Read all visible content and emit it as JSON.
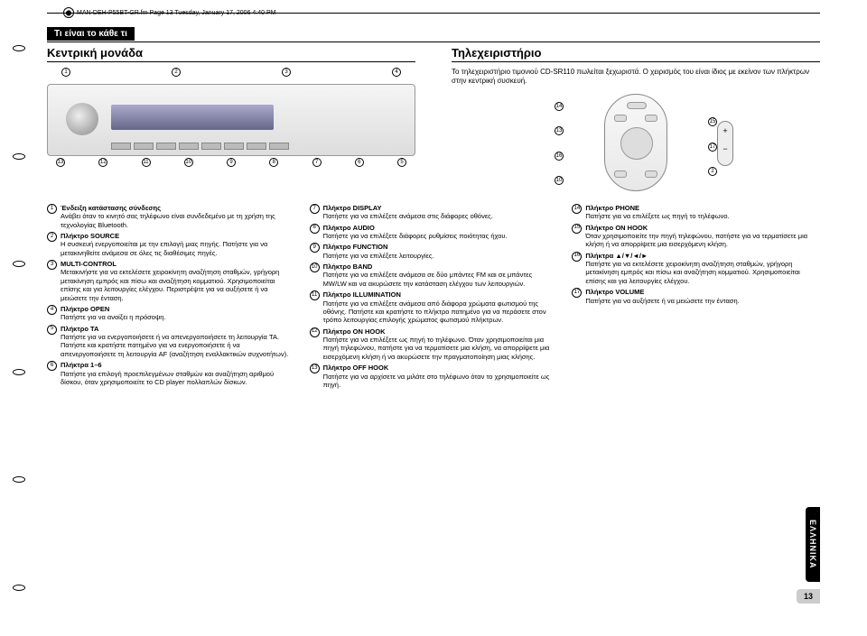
{
  "meta": {
    "filename": "MAN-DEH-P55BT-GR.fm  Page 13  Tuesday, January 17, 2006  4:40 PM"
  },
  "section_bar": "Τι είναι το κάθε τι",
  "left": {
    "title": "Κεντρική μονάδα",
    "top_callouts": [
      "1",
      "2",
      "3",
      "4"
    ],
    "bot_callouts": [
      "13",
      "12",
      "11",
      "10",
      "9",
      "8",
      "7",
      "6",
      "5"
    ]
  },
  "right": {
    "title": "Τηλεχειριστήριο",
    "desc": "Το τηλεχειριστήριο τιμονιού CD-SR110 πωλείται ξεχωριστά. Ο χειρισμός του είναι ίδιος με εκείνον των πλήκτρων στην κεντρική συσκευή.",
    "callouts_left": [
      "14",
      "13",
      "16",
      "10"
    ],
    "callouts_right": [
      "15",
      "17",
      "2"
    ]
  },
  "col1": [
    {
      "n": "1",
      "t": "Ένδειξη κατάστασης σύνδεσης",
      "d": "Ανάβει όταν το κινητό σας τηλέφωνο είναι συνδεδεμένο με τη χρήση της τεχνολογίας Bluetooth."
    },
    {
      "n": "2",
      "t": "Πλήκτρο SOURCE",
      "d": "Η συσκευή ενεργοποιείται με την επιλογή μιας πηγής. Πατήστε για να μετακινηθείτε ανάμεσα σε όλες τις διαθέσιμες πηγές."
    },
    {
      "n": "3",
      "t": "MULTI-CONTROL",
      "d": "Μετακινήστε για να εκτελέσετε χειροκίνητη αναζήτηση σταθμών, γρήγορη μετακίνηση εμπρός και πίσω και αναζήτηση κομματιού. Χρησιμοποιείται επίσης και για λειτουργίες ελέγχου. Περιστρέψτε για να αυξήσετε ή να μειώσετε την ένταση."
    },
    {
      "n": "4",
      "t": "Πλήκτρο OPEN",
      "d": "Πατήστε για να ανοίξει η πρόσοψη."
    },
    {
      "n": "5",
      "t": "Πλήκτρο TA",
      "d": "Πατήστε για να ενεργοποιήσετε ή να απενεργοποιήσετε τη λειτουργία TA. Πατήστε και κρατήστε πατημένο για να ενεργοποιήσετε ή να απενεργοποιήσετε τη λειτουργία AF (αναζήτηση εναλλακτικών συχνοτήτων)."
    },
    {
      "n": "6",
      "t": "Πλήκτρα 1–6",
      "d": "Πατήστε για επιλογή προεπιλεγμένων σταθμών και αναζήτηση αριθμού δίσκου, όταν χρησιμοποιείτε το CD player πολλαπλών δίσκων."
    }
  ],
  "col2": [
    {
      "n": "7",
      "t": "Πλήκτρο DISPLAY",
      "d": "Πατήστε για να επιλέξετε ανάμεσα στις διάφορες οθόνες."
    },
    {
      "n": "8",
      "t": "Πλήκτρο AUDIO",
      "d": "Πατήστε για να επιλέξετε διάφορες ρυθμίσεις ποιότητας ήχου."
    },
    {
      "n": "9",
      "t": "Πλήκτρο FUNCTION",
      "d": "Πατήστε για να επιλέξετε λειτουργίες."
    },
    {
      "n": "10",
      "t": "Πλήκτρο BAND",
      "d": "Πατήστε για να επιλέξετε ανάμεσα σε δύο μπάντες FM και σε μπάντες MW/LW και να ακυρώσετε την κατάσταση ελέγχου των λειτουργιών."
    },
    {
      "n": "11",
      "t": "Πλήκτρο ILLUMINATION",
      "d": "Πατήστε για να επιλέξετε ανάμεσα από διάφορα χρώματα φωτισμού της οθόνης. Πατήστε και κρατήστε το πλήκτρο πατημένο για να περάσετε στον τρόπο λειτουργίας επιλογής χρώματος φωτισμού πλήκτρων."
    },
    {
      "n": "12",
      "t": "Πλήκτρο ON HOOK",
      "d": "Πατήστε για να επιλέξετε ως πηγή το τηλέφωνο. Όταν χρησιμοποιείται μια πηγή τηλεφώνου, πατήστε για να τερματίσετε μια κλήση, να απορρίψετε μια εισερχόμενη κλήση ή να ακυρώσετε την πραγματοποίηση μιας κλήσης."
    },
    {
      "n": "13",
      "t": "Πλήκτρο OFF HOOK",
      "d": "Πατήστε για να αρχίσετε να μιλάτε στο τηλέφωνο όταν το χρησιμοποιείτε ως πηγή."
    }
  ],
  "col3": [
    {
      "n": "14",
      "t": "Πλήκτρο PHONE",
      "d": "Πατήστε για να επιλέξετε ως πηγή το τηλέφωνο."
    },
    {
      "n": "15",
      "t": "Πλήκτρο ON HOOK",
      "d": "Όταν χρησιμοποιείτε την πηγή τηλεφώνου, πατήστε για να τερματίσετε μια κλήση ή να απορρίψετε μια εισερχόμενη κλήση."
    },
    {
      "n": "16",
      "t": "Πλήκτρα ▲/▼/◄/►",
      "d": "Πατήστε για να εκτελέσετε χειροκίνητη αναζήτηση σταθμών, γρήγορη μετακίνηση εμπρός και πίσω και αναζήτηση κομματιού. Χρησιμοποιείται επίσης και για λειτουργίες ελέγχου."
    },
    {
      "n": "17",
      "t": "Πλήκτρο VOLUME",
      "d": "Πατήστε για να αυξήσετε ή να μειώσετε την ένταση."
    }
  ],
  "side_tab": "ΕΛΛΗΝΙΚΑ",
  "page_num": "13"
}
